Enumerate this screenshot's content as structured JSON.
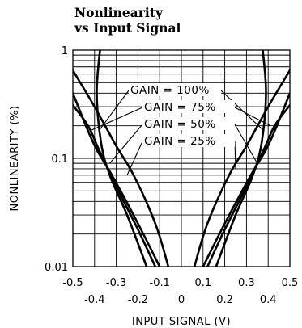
{
  "chart_data": {
    "type": "line",
    "title_lines": [
      "Nonlinearity",
      "vs Input Signal"
    ],
    "xlabel": "INPUT SIGNAL (V)",
    "ylabel": "NONLINEARITY (%)",
    "xlim": [
      -0.5,
      0.5
    ],
    "ylim": [
      0.01,
      1
    ],
    "y_scale": "log",
    "grid": true,
    "x_ticks_upper": [
      "-0.5",
      "-0.3",
      "-0.1",
      "0.1",
      "0.3",
      "0.5"
    ],
    "x_ticks_lower": [
      "-0.4",
      "-0.2",
      "0",
      "0.2",
      "0.4"
    ],
    "x_ticks_upper_values": [
      -0.5,
      -0.3,
      -0.1,
      0.1,
      0.3,
      0.5
    ],
    "x_ticks_lower_values": [
      -0.4,
      -0.2,
      0,
      0.2,
      0.4
    ],
    "y_ticks": [
      "1",
      "0.1",
      "0.01"
    ],
    "y_ticks_values": [
      1,
      0.1,
      0.01
    ],
    "series": [
      {
        "name": "GAIN = 100%",
        "left": [
          [
            -0.375,
            1.0
          ],
          [
            -0.39,
            0.4
          ],
          [
            -0.37,
            0.14
          ],
          [
            -0.33,
            0.07
          ],
          [
            -0.25,
            0.03
          ],
          [
            -0.16,
            0.01
          ]
        ],
        "right": [
          [
            0.375,
            1.0
          ],
          [
            0.39,
            0.4
          ],
          [
            0.37,
            0.14
          ],
          [
            0.33,
            0.07
          ],
          [
            0.25,
            0.03
          ],
          [
            0.16,
            0.01
          ]
        ]
      },
      {
        "name": "GAIN = 75%",
        "left": [
          [
            -0.5,
            0.31
          ],
          [
            -0.43,
            0.2
          ],
          [
            -0.38,
            0.12
          ],
          [
            -0.3,
            0.055
          ],
          [
            -0.2,
            0.022
          ],
          [
            -0.12,
            0.01
          ]
        ],
        "right": [
          [
            0.5,
            0.31
          ],
          [
            0.43,
            0.2
          ],
          [
            0.38,
            0.12
          ],
          [
            0.3,
            0.055
          ],
          [
            0.2,
            0.022
          ],
          [
            0.12,
            0.01
          ]
        ]
      },
      {
        "name": "GAIN = 50%",
        "left": [
          [
            -0.5,
            0.4
          ],
          [
            -0.44,
            0.2
          ],
          [
            -0.39,
            0.12
          ],
          [
            -0.32,
            0.07
          ],
          [
            -0.2,
            0.025
          ],
          [
            -0.1,
            0.01
          ]
        ],
        "right": [
          [
            0.5,
            0.4
          ],
          [
            0.44,
            0.2
          ],
          [
            0.39,
            0.12
          ],
          [
            0.32,
            0.07
          ],
          [
            0.2,
            0.025
          ],
          [
            0.1,
            0.01
          ]
        ]
      },
      {
        "name": "GAIN = 25%",
        "left": [
          [
            -0.5,
            0.65
          ],
          [
            -0.4,
            0.3
          ],
          [
            -0.3,
            0.13
          ],
          [
            -0.22,
            0.07
          ],
          [
            -0.12,
            0.025
          ],
          [
            -0.06,
            0.01
          ]
        ],
        "right": [
          [
            0.5,
            0.65
          ],
          [
            0.4,
            0.3
          ],
          [
            0.3,
            0.13
          ],
          [
            0.22,
            0.07
          ],
          [
            0.12,
            0.025
          ],
          [
            0.06,
            0.01
          ]
        ]
      }
    ],
    "annotations": [
      "GAIN = 100%",
      "GAIN = 75%",
      "GAIN = 50%",
      "GAIN = 25%"
    ]
  }
}
